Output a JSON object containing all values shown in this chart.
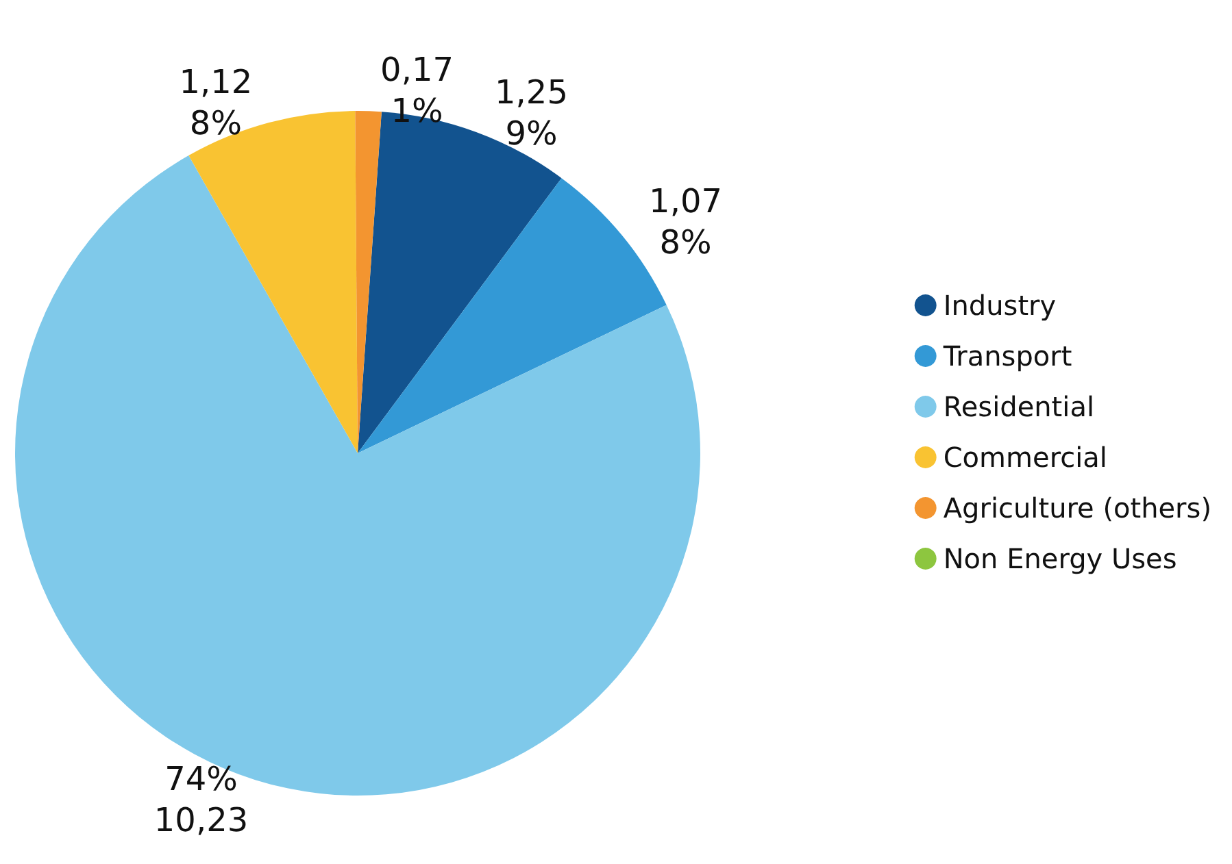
{
  "chart_data": {
    "type": "pie",
    "categories": [
      "Industry",
      "Transport",
      "Residential",
      "Commercial",
      "Agriculture (others)",
      "Non Energy Uses"
    ],
    "values": [
      1.25,
      1.07,
      10.23,
      1.12,
      0.17,
      0
    ],
    "colors": [
      "#12538f",
      "#3399d6",
      "#7fc9ea",
      "#f9c332",
      "#f39530",
      "#8dc63f"
    ],
    "value_labels": [
      "1,25\n9%",
      "1,07\n8%",
      "74%\n10,23",
      "1,12\n8%",
      "0,17\n1%",
      null
    ],
    "legend": "right"
  }
}
